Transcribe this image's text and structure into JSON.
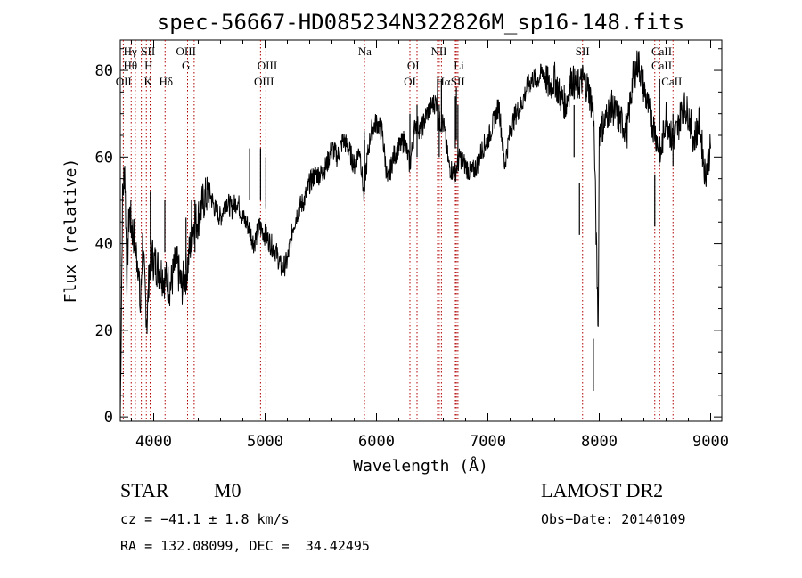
{
  "chart_data": {
    "type": "line",
    "title": "spec-56667-HD085234N322826M_sp16-148.fits",
    "xlabel": "Wavelength (Å)",
    "ylabel": "Flux (relative)",
    "xlim": [
      3700,
      9100
    ],
    "ylim": [
      -1,
      87
    ],
    "xticks": [
      4000,
      5000,
      6000,
      7000,
      8000,
      9000
    ],
    "yticks": [
      0,
      20,
      40,
      60,
      80
    ],
    "grid": false,
    "series": [
      {
        "x": [
          3700,
          3720,
          3740,
          3760,
          3780,
          3800,
          3820,
          3840,
          3860,
          3880,
          3900,
          3920,
          3940,
          3960,
          3980,
          4000,
          4050,
          4100,
          4150,
          4200,
          4250,
          4300,
          4350,
          4400,
          4450,
          4500,
          4550,
          4600,
          4650,
          4700,
          4750,
          4800,
          4850,
          4900,
          4950,
          5000,
          5050,
          5100,
          5150,
          5200,
          5250,
          5300,
          5350,
          5400,
          5450,
          5500,
          5550,
          5600,
          5650,
          5700,
          5750,
          5800,
          5850,
          5890,
          5900,
          5950,
          6000,
          6050,
          6100,
          6150,
          6200,
          6250,
          6300,
          6350,
          6400,
          6450,
          6500,
          6550,
          6560,
          6600,
          6650,
          6700,
          6750,
          6800,
          6850,
          6900,
          6950,
          7000,
          7050,
          7100,
          7150,
          7200,
          7250,
          7300,
          7350,
          7400,
          7450,
          7500,
          7550,
          7600,
          7650,
          7700,
          7750,
          7800,
          7850,
          7900,
          7950,
          7990,
          8000,
          8050,
          8100,
          8150,
          8200,
          8250,
          8300,
          8350,
          8400,
          8450,
          8500,
          8550,
          8600,
          8650,
          8700,
          8750,
          8800,
          8850,
          8900,
          8950,
          9000
        ],
        "y": [
          0,
          50,
          58,
          32,
          48,
          44,
          42,
          38,
          36,
          24,
          40,
          30,
          22,
          34,
          38,
          36,
          34,
          32,
          30,
          36,
          30,
          34,
          44,
          46,
          50,
          52,
          48,
          46,
          50,
          48,
          50,
          46,
          44,
          40,
          44,
          42,
          40,
          38,
          34,
          36,
          44,
          48,
          50,
          54,
          56,
          56,
          58,
          62,
          60,
          64,
          62,
          58,
          62,
          50,
          56,
          66,
          68,
          66,
          54,
          60,
          62,
          64,
          58,
          68,
          66,
          70,
          72,
          73,
          68,
          68,
          58,
          56,
          60,
          58,
          56,
          58,
          62,
          64,
          68,
          72,
          58,
          66,
          70,
          72,
          76,
          78,
          78,
          80,
          76,
          78,
          74,
          72,
          78,
          76,
          78,
          76,
          70,
          20,
          66,
          68,
          72,
          70,
          68,
          66,
          78,
          82,
          76,
          70,
          66,
          60,
          70,
          64,
          66,
          72,
          70,
          64,
          68,
          56,
          62
        ]
      },
      {
        "x": [
          3970,
          4100,
          4290,
          4340,
          4370,
          4861,
          4959,
          5007,
          5890,
          5893,
          6300,
          6364,
          6548,
          6563,
          6583,
          6708,
          6717,
          6731,
          7774,
          7822,
          7947,
          8498,
          8542,
          8662
        ],
        "y": [
          40,
          38,
          34,
          38,
          38,
          50,
          50,
          48,
          54,
          52,
          58,
          60,
          66,
          60,
          66,
          62,
          64,
          60,
          60,
          42,
          6,
          44,
          66,
          58
        ]
      }
    ],
    "annotations": {
      "row1": [
        "Hγ",
        "SII",
        "OIII",
        "Na",
        "NII",
        "SII",
        "CaII"
      ],
      "row2": [
        "Hθ",
        "H",
        "G",
        "OIII",
        "OI",
        "Li",
        "CaII"
      ],
      "row3": [
        "OII",
        "K",
        "Hδ",
        "OIII",
        "OI",
        "Hα",
        "SII",
        "CaII"
      ],
      "lines": [
        3727,
        3798,
        3835,
        3889,
        3934,
        3968,
        4102,
        4304,
        4363,
        4959,
        5007,
        5892,
        6300,
        6364,
        6548,
        6563,
        6583,
        6708,
        6717,
        6731,
        7850,
        8498,
        8542,
        8662
      ]
    }
  },
  "info": {
    "class": "STAR",
    "subclass": "M0",
    "survey": "LAMOST DR2",
    "cz": "cz = −41.1 ± 1.8 km/s",
    "obs_date": "Obs−Date: 20140109",
    "radec": "RA = 132.08099, DEC =  34.42495"
  }
}
